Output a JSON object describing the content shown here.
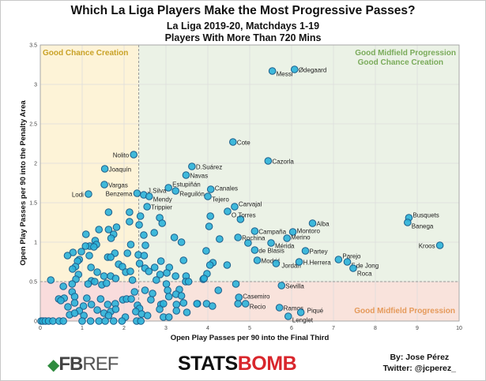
{
  "header": {
    "title": "Which La Liga Players Make the Most Progressive Passes?",
    "subtitle1": "La Liga 2019-20, Matchdays 1-19",
    "subtitle2": "Players With More Than 720 Mins"
  },
  "footer": {
    "fbref_logo": "FBREF",
    "fbref_a": "FB",
    "fbref_b": "REF",
    "statsbomb_logo": "STATSBOMB",
    "statsbomb_a": "STATS",
    "statsbomb_b": "BOMB",
    "author": "By: Jose Pérez",
    "twitter": "Twitter: @jcperez_"
  },
  "colors": {
    "top_left": "#fdf3d7",
    "top_right": "#ebf2e6",
    "bottom": "#f9e3dc",
    "bottom_left": "#f9dcdc",
    "dot_fill": "#2bb3d9",
    "dot_stroke": "#1c5f8c",
    "quad_tl_text": "#c9a227",
    "quad_tr_text": "#7aab5a",
    "quad_br_text": "#e59a5a"
  },
  "chart_data": {
    "type": "scatter",
    "xlabel": "Open Play Passes per 90 into the Final Third",
    "ylabel": "Open Play Passes per 90 into the Penalty Area",
    "xlim": [
      0,
      10
    ],
    "ylim": [
      0,
      3.5
    ],
    "xticks": [
      "0",
      "1",
      "2",
      "3",
      "4",
      "5",
      "6",
      "7",
      "8",
      "9",
      "10"
    ],
    "yticks": [
      "0",
      "0.5",
      "1",
      "1.5",
      "2",
      "2.5",
      "3",
      "3.5"
    ],
    "grid": true,
    "thresholds": {
      "x": 2.35,
      "y": 0.5
    },
    "quadrant_labels": {
      "top_left": "Good Chance Creation",
      "top_right_1": "Good Midfield Progression",
      "top_right_2": "Good Chance Creation",
      "bottom_right": "Good Midfield Progression"
    },
    "labeled_points": [
      {
        "name": "Messi",
        "x": 5.54,
        "y": 3.17
      },
      {
        "name": "Ødegaard",
        "x": 6.07,
        "y": 3.19
      },
      {
        "name": "Cote",
        "x": 4.6,
        "y": 2.27
      },
      {
        "name": "Cazorla",
        "x": 5.44,
        "y": 2.03
      },
      {
        "name": "Nolito",
        "x": 2.23,
        "y": 2.11
      },
      {
        "name": "Joaquín",
        "x": 1.54,
        "y": 1.93
      },
      {
        "name": "D.Suárez",
        "x": 3.62,
        "y": 1.96
      },
      {
        "name": "Navas",
        "x": 3.48,
        "y": 1.85
      },
      {
        "name": "Vargas",
        "x": 1.53,
        "y": 1.73
      },
      {
        "name": "Lodi",
        "x": 1.15,
        "y": 1.61
      },
      {
        "name": "Benzema",
        "x": 2.31,
        "y": 1.62
      },
      {
        "name": "J.Silva",
        "x": 2.47,
        "y": 1.6
      },
      {
        "name": "Mendy",
        "x": 2.6,
        "y": 1.58
      },
      {
        "name": "Estupiñán",
        "x": 3.06,
        "y": 1.69
      },
      {
        "name": "Reguilón",
        "x": 3.23,
        "y": 1.65
      },
      {
        "name": "Canales",
        "x": 4.07,
        "y": 1.67
      },
      {
        "name": "Tejero",
        "x": 4.0,
        "y": 1.58
      },
      {
        "name": "Trippier",
        "x": 2.55,
        "y": 1.45
      },
      {
        "name": "Carvajal",
        "x": 4.64,
        "y": 1.45
      },
      {
        "name": "O.Torres",
        "x": 4.47,
        "y": 1.39
      },
      {
        "name": "Alba",
        "x": 6.5,
        "y": 1.24
      },
      {
        "name": "Campaña",
        "x": 5.12,
        "y": 1.14
      },
      {
        "name": "Montoro",
        "x": 6.03,
        "y": 1.13
      },
      {
        "name": "Rochina",
        "x": 4.72,
        "y": 1.06
      },
      {
        "name": "Merino",
        "x": 5.89,
        "y": 1.05
      },
      {
        "name": "Mérida",
        "x": 5.51,
        "y": 0.99
      },
      {
        "name": "de Blasis",
        "x": 5.12,
        "y": 0.9
      },
      {
        "name": "Partey",
        "x": 6.33,
        "y": 0.89
      },
      {
        "name": "Modrić",
        "x": 5.18,
        "y": 0.77
      },
      {
        "name": "Jordán",
        "x": 5.63,
        "y": 0.73
      },
      {
        "name": "H.Herrera",
        "x": 6.18,
        "y": 0.75
      },
      {
        "name": "Parejo",
        "x": 7.12,
        "y": 0.78
      },
      {
        "name": "F.de Jong",
        "x": 7.33,
        "y": 0.75
      },
      {
        "name": "Roca",
        "x": 7.47,
        "y": 0.67
      },
      {
        "name": "Busquets",
        "x": 8.8,
        "y": 1.31
      },
      {
        "name": "Banega",
        "x": 8.77,
        "y": 1.25
      },
      {
        "name": "Kroos",
        "x": 9.54,
        "y": 0.96
      },
      {
        "name": "Sevilla",
        "x": 5.76,
        "y": 0.45
      },
      {
        "name": "Casemiro",
        "x": 4.74,
        "y": 0.3
      },
      {
        "name": "Recio",
        "x": 4.9,
        "y": 0.22
      },
      {
        "name": "Ramos",
        "x": 5.71,
        "y": 0.17
      },
      {
        "name": "Piqué",
        "x": 6.22,
        "y": 0.11
      },
      {
        "name": "Lenglet",
        "x": 5.92,
        "y": 0.06
      }
    ],
    "other_points": [
      [
        1.63,
        1.38
      ],
      [
        2.13,
        1.38
      ],
      [
        2.13,
        1.26
      ],
      [
        2.39,
        1.33
      ],
      [
        2.36,
        1.22
      ],
      [
        2.85,
        1.31
      ],
      [
        2.91,
        1.24
      ],
      [
        2.72,
        1.12
      ],
      [
        2.47,
        1.09
      ],
      [
        3.2,
        1.06
      ],
      [
        3.37,
        1.0
      ],
      [
        1.09,
        1.1
      ],
      [
        1.4,
        1.16
      ],
      [
        1.63,
        1.16
      ],
      [
        1.82,
        1.19
      ],
      [
        1.75,
        1.1
      ],
      [
        1.69,
        1.05
      ],
      [
        1.31,
        1.02
      ],
      [
        1.34,
        0.97
      ],
      [
        1.18,
        0.95
      ],
      [
        1.08,
        0.95
      ],
      [
        1.28,
        0.94
      ],
      [
        0.98,
        0.88
      ],
      [
        0.78,
        0.87
      ],
      [
        0.65,
        0.83
      ],
      [
        1.17,
        0.83
      ],
      [
        1.78,
        0.86
      ],
      [
        2.08,
        0.86
      ],
      [
        2.16,
        0.97
      ],
      [
        2.51,
        0.96
      ],
      [
        2.34,
        0.84
      ],
      [
        2.48,
        0.83
      ],
      [
        1.61,
        0.81
      ],
      [
        1.68,
        0.81
      ],
      [
        0.93,
        0.78
      ],
      [
        0.89,
        0.76
      ],
      [
        1.87,
        0.72
      ],
      [
        1.96,
        0.69
      ],
      [
        2.37,
        0.73
      ],
      [
        2.5,
        0.67
      ],
      [
        3.42,
        0.77
      ],
      [
        2.88,
        0.76
      ],
      [
        3.08,
        0.68
      ],
      [
        2.73,
        0.68
      ],
      [
        0.84,
        0.69
      ],
      [
        0.77,
        0.66
      ],
      [
        1.21,
        0.68
      ],
      [
        1.36,
        0.62
      ],
      [
        2.04,
        0.62
      ],
      [
        2.15,
        0.63
      ],
      [
        2.59,
        0.63
      ],
      [
        2.86,
        0.59
      ],
      [
        3.02,
        0.61
      ],
      [
        3.23,
        0.57
      ],
      [
        1.52,
        0.57
      ],
      [
        1.68,
        0.57
      ],
      [
        1.8,
        0.54
      ],
      [
        0.91,
        0.59
      ],
      [
        0.85,
        0.53
      ],
      [
        0.25,
        0.52
      ],
      [
        1.22,
        0.51
      ],
      [
        1.3,
        0.5
      ],
      [
        2.2,
        0.52
      ],
      [
        2.77,
        0.52
      ],
      [
        3.48,
        0.57
      ],
      [
        3.47,
        0.5
      ],
      [
        3.54,
        0.5
      ],
      [
        3.89,
        0.53
      ],
      [
        0.55,
        0.44
      ],
      [
        0.76,
        0.47
      ],
      [
        1.14,
        0.47
      ],
      [
        1.47,
        0.46
      ],
      [
        1.58,
        0.48
      ],
      [
        2.25,
        0.37
      ],
      [
        2.5,
        0.39
      ],
      [
        3.01,
        0.47
      ],
      [
        3.04,
        0.39
      ],
      [
        3.32,
        0.4
      ],
      [
        0.76,
        0.37
      ],
      [
        0.82,
        0.31
      ],
      [
        1.11,
        0.29
      ],
      [
        1.44,
        0.28
      ],
      [
        0.44,
        0.28
      ],
      [
        0.57,
        0.29
      ],
      [
        0.49,
        0.26
      ],
      [
        2.68,
        0.35
      ],
      [
        2.64,
        0.27
      ],
      [
        3.24,
        0.34
      ],
      [
        3.37,
        0.32
      ],
      [
        3.07,
        0.31
      ],
      [
        1.97,
        0.27
      ],
      [
        2.06,
        0.28
      ],
      [
        2.17,
        0.28
      ],
      [
        0.82,
        0.23
      ],
      [
        1.22,
        0.21
      ],
      [
        1.61,
        0.21
      ],
      [
        1.79,
        0.22
      ],
      [
        2.32,
        0.2
      ],
      [
        2.37,
        0.16
      ],
      [
        2.88,
        0.21
      ],
      [
        2.94,
        0.22
      ],
      [
        3.25,
        0.21
      ],
      [
        3.42,
        0.23
      ],
      [
        3.75,
        0.22
      ],
      [
        0.66,
        0.18
      ],
      [
        1.03,
        0.19
      ],
      [
        0.93,
        0.13
      ],
      [
        1.36,
        0.14
      ],
      [
        1.52,
        0.1
      ],
      [
        1.68,
        0.12
      ],
      [
        1.8,
        0.15
      ],
      [
        2.28,
        0.12
      ],
      [
        2.42,
        0.09
      ],
      [
        2.56,
        0.07
      ],
      [
        2.85,
        0.15
      ],
      [
        3.25,
        0.13
      ],
      [
        3.5,
        0.11
      ],
      [
        0.7,
        0.08
      ],
      [
        0.82,
        0.1
      ],
      [
        1.04,
        0.07
      ],
      [
        1.63,
        0.07
      ],
      [
        2.03,
        0.05
      ],
      [
        2.94,
        0.05
      ],
      [
        3.07,
        0.05
      ],
      [
        4.06,
        1.33
      ],
      [
        4.03,
        1.2
      ],
      [
        4.78,
        1.29
      ],
      [
        4.28,
        1.04
      ],
      [
        4.96,
        0.99
      ],
      [
        3.96,
        0.89
      ],
      [
        4.12,
        0.74
      ],
      [
        4.05,
        0.71
      ],
      [
        4.46,
        0.71
      ],
      [
        3.98,
        0.6
      ],
      [
        3.91,
        0.54
      ],
      [
        4.67,
        0.47
      ],
      [
        4.25,
        0.39
      ],
      [
        3.74,
        0.22
      ],
      [
        3.97,
        0.22
      ],
      [
        4.11,
        0.19
      ],
      [
        4.72,
        0.22
      ],
      [
        0.02,
        0
      ],
      [
        0.06,
        0
      ],
      [
        0.12,
        0
      ],
      [
        0.2,
        0
      ],
      [
        0.3,
        0
      ],
      [
        0.45,
        0
      ],
      [
        0.55,
        0
      ],
      [
        1.0,
        0
      ],
      [
        1.2,
        0
      ],
      [
        1.4,
        0
      ],
      [
        1.55,
        0
      ],
      [
        1.75,
        0
      ],
      [
        1.95,
        0
      ],
      [
        2.3,
        0
      ],
      [
        2.4,
        0
      ]
    ]
  }
}
